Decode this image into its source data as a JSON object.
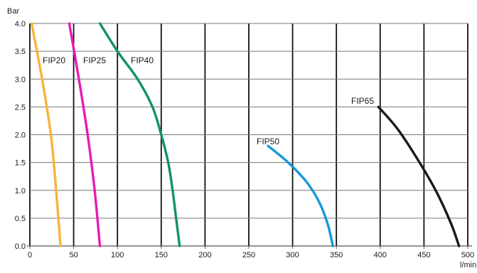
{
  "chart_data": {
    "type": "line",
    "title": "",
    "ylabel": "Bar",
    "xlabel": "l/min",
    "xlim": [
      0,
      500
    ],
    "ylim": [
      0,
      4
    ],
    "grid": true,
    "x_ticks": [
      0,
      50,
      100,
      150,
      200,
      250,
      300,
      350,
      400,
      450,
      500
    ],
    "y_ticks": [
      "0.0",
      "0.5",
      "1.0",
      "1.5",
      "2.0",
      "2.5",
      "3.0",
      "3.5",
      "4.0"
    ],
    "series": [
      {
        "name": "FIP20",
        "color": "#f8b33c",
        "points": [
          [
            2,
            4.0
          ],
          [
            14,
            3.0
          ],
          [
            24,
            2.0
          ],
          [
            30,
            1.0
          ],
          [
            35,
            0.0
          ]
        ]
      },
      {
        "name": "FIP25",
        "color": "#e61cb5",
        "points": [
          [
            45,
            4.0
          ],
          [
            56,
            3.0
          ],
          [
            66,
            2.0
          ],
          [
            74,
            1.0
          ],
          [
            80,
            0.0
          ]
        ]
      },
      {
        "name": "FIP40",
        "color": "#129266",
        "points": [
          [
            80,
            4.0
          ],
          [
            100,
            3.5
          ],
          [
            123,
            3.0
          ],
          [
            140,
            2.5
          ],
          [
            150,
            2.0
          ],
          [
            158,
            1.5
          ],
          [
            163,
            1.0
          ],
          [
            167,
            0.5
          ],
          [
            171,
            0.0
          ]
        ]
      },
      {
        "name": "FIP50",
        "color": "#1598d9",
        "points": [
          [
            272,
            1.8
          ],
          [
            295,
            1.5
          ],
          [
            316,
            1.15
          ],
          [
            330,
            0.8
          ],
          [
            340,
            0.4
          ],
          [
            346,
            0.0
          ]
        ]
      },
      {
        "name": "FIP65",
        "color": "#1a1a1a",
        "points": [
          [
            398,
            2.5
          ],
          [
            420,
            2.1
          ],
          [
            445,
            1.5
          ],
          [
            465,
            0.95
          ],
          [
            481,
            0.4
          ],
          [
            490,
            0.0
          ]
        ]
      }
    ]
  }
}
